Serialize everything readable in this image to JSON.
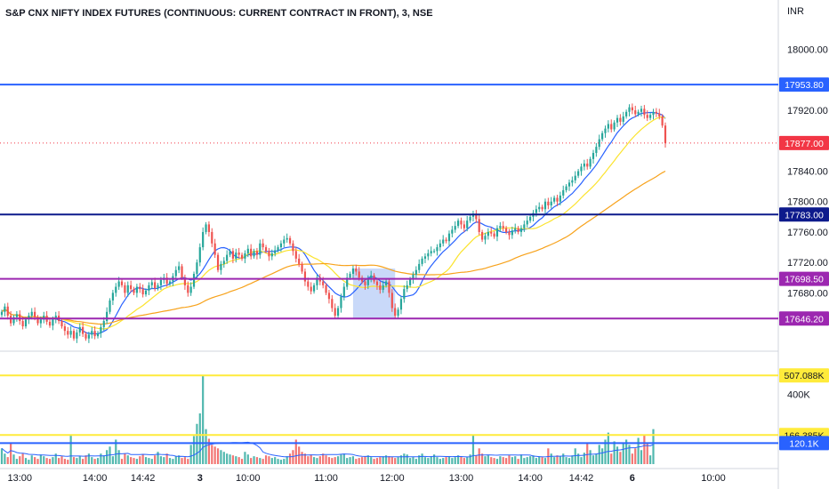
{
  "header": {
    "title": "S&P CNX NIFTY INDEX FUTURES (CONTINUOUS: CURRENT CONTRACT IN FRONT), 3, NSE"
  },
  "price_axis": {
    "currency": "INR",
    "ticks": [
      "18000.00",
      "17920.00",
      "17840.00",
      "17800.00",
      "17760.00",
      "17720.00",
      "17680.00"
    ]
  },
  "volume_axis": {
    "ticks": [
      "400K"
    ]
  },
  "time_axis": {
    "labels": [
      "13:00",
      "14:00",
      "14:42",
      "3",
      "10:00",
      "11:00",
      "12:00",
      "13:00",
      "14:00",
      "14:42",
      "6",
      "10:00"
    ]
  },
  "horizontal_lines": [
    {
      "label": "17953.80",
      "value": 17953.8,
      "color": "#2962ff",
      "pane": "price"
    },
    {
      "label": "17877.00",
      "value": 17877.0,
      "color": "#f23645",
      "pane": "price",
      "dotted": true
    },
    {
      "label": "17783.00",
      "value": 17783.0,
      "color": "#0d1a8c",
      "pane": "price"
    },
    {
      "label": "17698.50",
      "value": 17698.5,
      "color": "#9c27b0",
      "pane": "price"
    },
    {
      "label": "17646.20",
      "value": 17646.2,
      "color": "#9c27b0",
      "pane": "price"
    },
    {
      "label": "507.088K",
      "value": 507088,
      "color": "#ffeb3b",
      "pane": "volume"
    },
    {
      "label": "166.385K",
      "value": 166385,
      "color": "#ffeb3b",
      "pane": "volume"
    },
    {
      "label": "120.1K",
      "value": 120100,
      "color": "#2962ff",
      "pane": "volume"
    }
  ],
  "chart_data": {
    "type": "candlestick",
    "title": "S&P CNX NIFTY INDEX FUTURES (CONTINUOUS: CURRENT CONTRACT IN FRONT), 3, NSE",
    "price_range": [
      17615,
      18030
    ],
    "volume_range": [
      0,
      620000
    ],
    "colors": {
      "up": "#26a69a",
      "down": "#ef5350",
      "ma_fast": "#2962ff",
      "ma_mid": "#fbe32d",
      "ma_slow": "#f7a21b",
      "vol_ma": "#2962ff",
      "highlight": "#bbd0f7"
    },
    "highlight_box": {
      "from_bar": 117,
      "to_bar": 131,
      "price_low": 17646,
      "price_high": 17712
    },
    "closes": [
      17655,
      17662,
      17650,
      17640,
      17648,
      17652,
      17643,
      17636,
      17645,
      17650,
      17655,
      17648,
      17640,
      17645,
      17650,
      17642,
      17637,
      17645,
      17650,
      17643,
      17636,
      17630,
      17625,
      17630,
      17620,
      17628,
      17635,
      17626,
      17620,
      17625,
      17630,
      17623,
      17627,
      17635,
      17643,
      17655,
      17670,
      17680,
      17688,
      17695,
      17690,
      17680,
      17690,
      17685,
      17680,
      17688,
      17685,
      17678,
      17683,
      17690,
      17694,
      17686,
      17690,
      17697,
      17700,
      17692,
      17695,
      17702,
      17710,
      17715,
      17700,
      17690,
      17680,
      17688,
      17705,
      17720,
      17740,
      17760,
      17770,
      17760,
      17745,
      17730,
      17710,
      17718,
      17722,
      17730,
      17735,
      17725,
      17733,
      17730,
      17725,
      17732,
      17738,
      17728,
      17735,
      17730,
      17745,
      17740,
      17735,
      17728,
      17732,
      17736,
      17740,
      17745,
      17750,
      17752,
      17745,
      17735,
      17725,
      17718,
      17708,
      17695,
      17688,
      17682,
      17690,
      17700,
      17695,
      17690,
      17680,
      17672,
      17660,
      17650,
      17660,
      17675,
      17688,
      17700,
      17705,
      17712,
      17708,
      17700,
      17695,
      17690,
      17698,
      17703,
      17695,
      17690,
      17684,
      17690,
      17695,
      17680,
      17660,
      17650,
      17658,
      17672,
      17685,
      17690,
      17698,
      17704,
      17710,
      17718,
      17725,
      17728,
      17732,
      17735,
      17735,
      17740,
      17745,
      17750,
      17748,
      17758,
      17763,
      17768,
      17775,
      17770,
      17765,
      17775,
      17780,
      17784,
      17777,
      17760,
      17750,
      17755,
      17760,
      17758,
      17754,
      17765,
      17768,
      17765,
      17760,
      17756,
      17762,
      17765,
      17760,
      17765,
      17770,
      17775,
      17780,
      17785,
      17790,
      17793,
      17790,
      17800,
      17795,
      17800,
      17805,
      17800,
      17808,
      17815,
      17820,
      17825,
      17828,
      17834,
      17840,
      17846,
      17850,
      17846,
      17856,
      17864,
      17872,
      17882,
      17890,
      17896,
      17902,
      17895,
      17904,
      17910,
      17905,
      17912,
      17918,
      17924,
      17920,
      17915,
      17918,
      17922,
      17914,
      17910,
      17914,
      17918,
      17916,
      17912,
      17900,
      17877
    ],
    "volumes": [
      90000,
      60000,
      40000,
      120000,
      55000,
      30000,
      45000,
      60000,
      35000,
      25000,
      50000,
      40000,
      30000,
      55000,
      45000,
      35000,
      30000,
      40000,
      60000,
      35000,
      45000,
      30000,
      25000,
      170000,
      40000,
      35000,
      45000,
      30000,
      50000,
      60000,
      40000,
      30000,
      35000,
      60000,
      50000,
      80000,
      100000,
      45000,
      140000,
      80000,
      30000,
      60000,
      50000,
      40000,
      35000,
      30000,
      45000,
      55000,
      40000,
      35000,
      30000,
      50000,
      70000,
      45000,
      40000,
      60000,
      35000,
      30000,
      45000,
      50000,
      35000,
      40000,
      30000,
      110000,
      160000,
      230000,
      290000,
      510000,
      200000,
      145000,
      110000,
      100000,
      90000,
      80000,
      70000,
      60000,
      55000,
      50000,
      45000,
      40000,
      30000,
      70000,
      55000,
      35000,
      45000,
      40000,
      35000,
      30000,
      50000,
      45000,
      35000,
      40000,
      30000,
      25000,
      30000,
      45000,
      60000,
      80000,
      140000,
      100000,
      70000,
      60000,
      45000,
      55000,
      40000,
      35000,
      45000,
      60000,
      50000,
      40000,
      35000,
      40000,
      45000,
      55000,
      60000,
      35000,
      40000,
      45000,
      30000,
      35000,
      40000,
      45000,
      50000,
      40000,
      30000,
      35000,
      40000,
      45000,
      50000,
      45000,
      40000,
      35000,
      40000,
      50000,
      60000,
      55000,
      35000,
      40000,
      30000,
      50000,
      60000,
      40000,
      35000,
      45000,
      55000,
      40000,
      30000,
      35000,
      40000,
      45000,
      35000,
      40000,
      50000,
      45000,
      35000,
      40000,
      55000,
      170000,
      50000,
      90000,
      60000,
      45000,
      50000,
      40000,
      35000,
      30000,
      45000,
      40000,
      35000,
      50000,
      40000,
      45000,
      30000,
      55000,
      35000,
      40000,
      45000,
      50000,
      35000,
      45000,
      40000,
      35000,
      90000,
      60000,
      40000,
      50000,
      45000,
      60000,
      40000,
      35000,
      50000,
      90000,
      60000,
      40000,
      65000,
      120000,
      80000,
      50000,
      60000,
      110000,
      90000,
      140000,
      180000,
      60000,
      130000,
      100000,
      70000,
      120000,
      140000,
      110000,
      60000,
      90000,
      150000,
      80000,
      170000,
      120000,
      50000,
      200000
    ]
  }
}
